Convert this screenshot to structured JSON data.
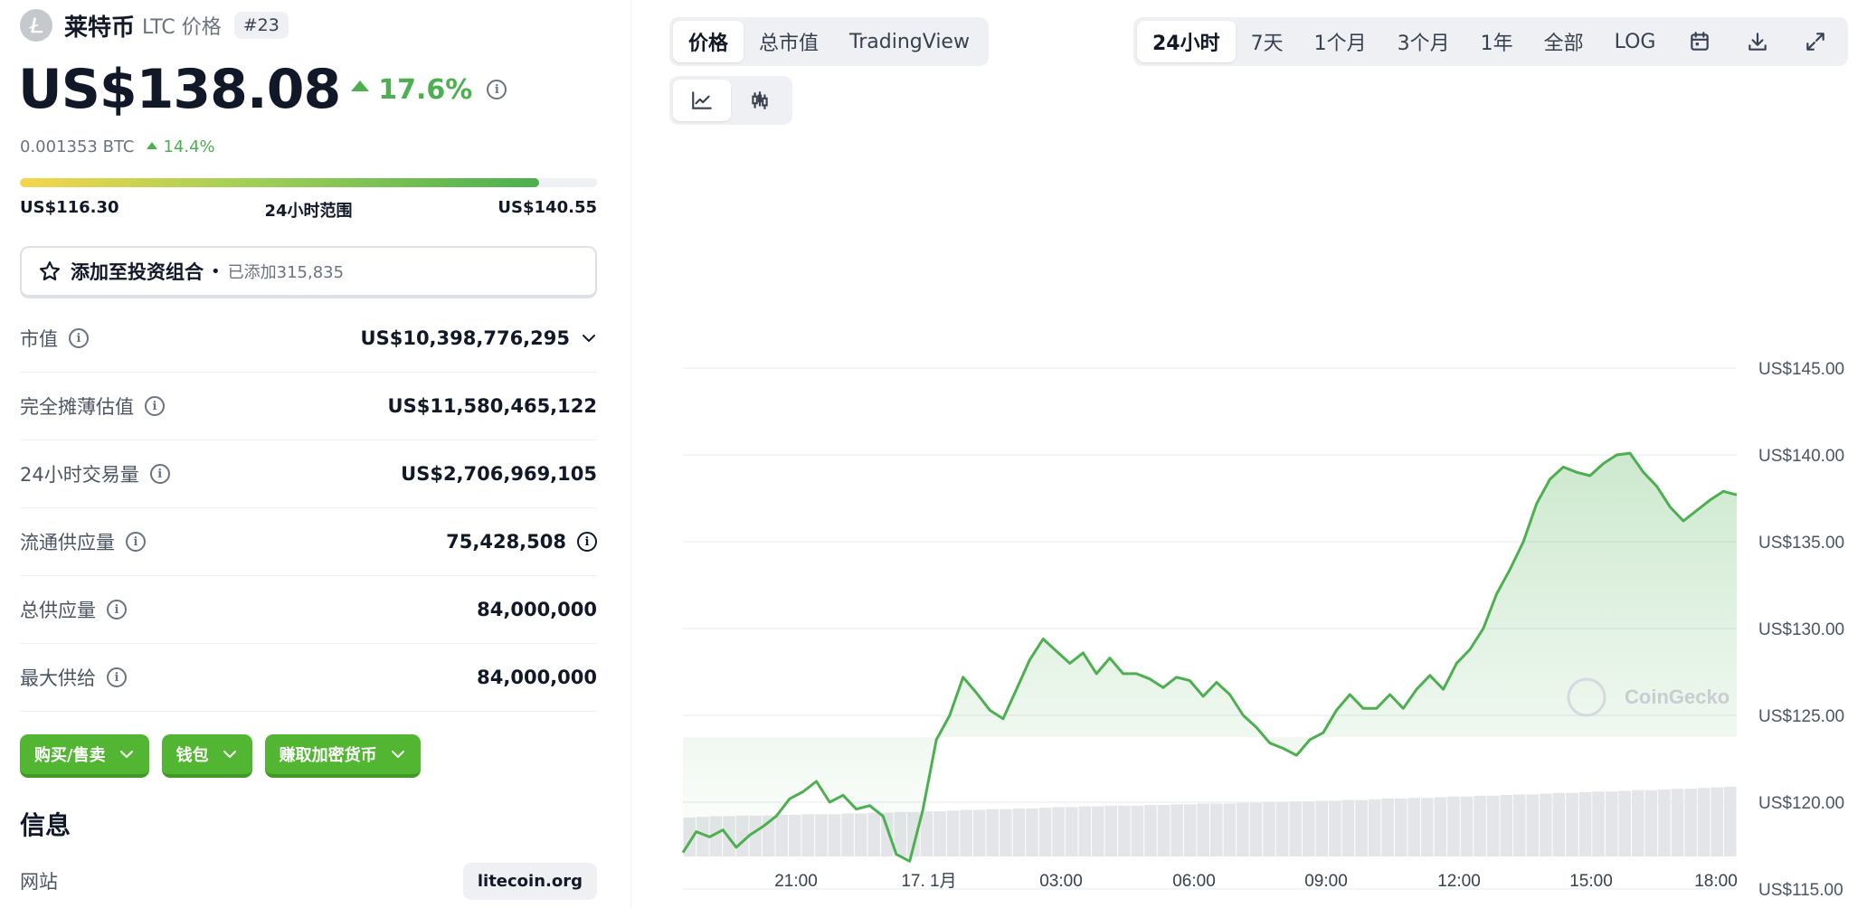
{
  "coin": {
    "name": "莱特币",
    "subtitle": "LTC 价格",
    "rank": "#23"
  },
  "price": {
    "value": "US$138.08",
    "change": "17.6%",
    "btc_value": "0.001353 BTC",
    "btc_change": "14.4%"
  },
  "range": {
    "low": "US$116.30",
    "label": "24小时范围",
    "high": "US$140.55",
    "position": 0.9
  },
  "portfolio": {
    "label": "添加至投资组合",
    "count": "已添加315,835"
  },
  "stats": [
    {
      "label": "市值",
      "value": "US$10,398,776,295"
    },
    {
      "label": "完全摊薄估值",
      "value": "US$11,580,465,122"
    },
    {
      "label": "24小时交易量",
      "value": "US$2,706,969,105"
    },
    {
      "label": "流通供应量",
      "value": "75,428,508"
    },
    {
      "label": "总供应量",
      "value": "84,000,000"
    },
    {
      "label": "最大供给",
      "value": "84,000,000"
    }
  ],
  "actions": {
    "buy_sell": "购买/售卖",
    "wallet": "钱包",
    "earn": "赚取加密货币"
  },
  "info": {
    "title": "信息",
    "website_label": "网站",
    "website": "litecoin.org"
  },
  "tabs": {
    "price": "价格",
    "market_cap": "总市值",
    "tradingview": "TradingView"
  },
  "ranges": {
    "h24": "24小时",
    "d7": "7天",
    "m1": "1个月",
    "m3": "3个月",
    "y1": "1年",
    "all": "全部",
    "log": "LOG"
  },
  "icons": {
    "coin_logo": "litecoin-icon",
    "star": "star-icon",
    "info": "info-icon",
    "chevron": "chevron-down-icon",
    "line_chart": "line-chart-icon",
    "candle_chart": "candlestick-icon",
    "calendar": "calendar-icon",
    "download": "download-icon",
    "expand": "expand-icon"
  },
  "colors": {
    "up": "#4caf50",
    "line": "#4caf50",
    "button": "#52b633"
  },
  "chart_data": {
    "type": "area",
    "watermark": "CoinGecko",
    "y_ticks": [
      "US$115.00",
      "US$120.00",
      "US$125.00",
      "US$130.00",
      "US$135.00",
      "US$140.00",
      "US$145.00"
    ],
    "x_ticks": [
      "21:00",
      "17. 1月",
      "03:00",
      "06:00",
      "09:00",
      "12:00",
      "15:00",
      "18:00"
    ],
    "ylim": [
      110,
      146.5
    ],
    "grid": true,
    "series": [
      {
        "values": [
          117.1,
          118.3,
          118.0,
          118.4,
          117.4,
          118.1,
          118.6,
          119.2,
          120.2,
          120.6,
          121.2,
          120.0,
          120.4,
          119.6,
          119.8,
          119.2,
          117.0,
          116.6,
          119.6,
          123.6,
          125.0,
          127.2,
          126.3,
          125.3,
          124.8,
          126.5,
          128.2,
          129.4,
          128.7,
          128.0,
          128.6,
          127.4,
          128.3,
          127.4,
          127.4,
          127.1,
          126.6,
          127.2,
          127.0,
          126.1,
          126.9,
          126.2,
          125.0,
          124.3,
          123.4,
          123.1,
          122.7,
          123.6,
          124.0,
          125.3,
          126.2,
          125.4,
          125.4,
          126.2,
          125.4,
          126.5,
          127.3,
          126.5,
          128.0,
          128.8,
          130.0,
          132.0,
          133.4,
          135.0,
          137.2,
          138.6,
          139.3,
          139.0,
          138.8,
          139.5,
          140.0,
          140.1,
          139.0,
          138.2,
          137.0,
          136.2,
          136.8,
          137.4,
          137.9,
          137.7
        ]
      }
    ],
    "volume": [
      0.55,
      0.56,
      0.57,
      0.57,
      0.58,
      0.58,
      0.58,
      0.59,
      0.59,
      0.6,
      0.6,
      0.6,
      0.61,
      0.61,
      0.62,
      0.62,
      0.63,
      0.63,
      0.64,
      0.64,
      0.65,
      0.66,
      0.66,
      0.67,
      0.67,
      0.68,
      0.68,
      0.69,
      0.7,
      0.7,
      0.71,
      0.71,
      0.72,
      0.72,
      0.72,
      0.73,
      0.73,
      0.74,
      0.74,
      0.75,
      0.75,
      0.75,
      0.76,
      0.76,
      0.77,
      0.77,
      0.78,
      0.78,
      0.79,
      0.79,
      0.8,
      0.8,
      0.81,
      0.82,
      0.82,
      0.83,
      0.83,
      0.84,
      0.85,
      0.85,
      0.86,
      0.86,
      0.87,
      0.88,
      0.88,
      0.89,
      0.9,
      0.9,
      0.91,
      0.92,
      0.92,
      0.93,
      0.94,
      0.94,
      0.95,
      0.96,
      0.96,
      0.97,
      0.98,
      0.99
    ]
  }
}
